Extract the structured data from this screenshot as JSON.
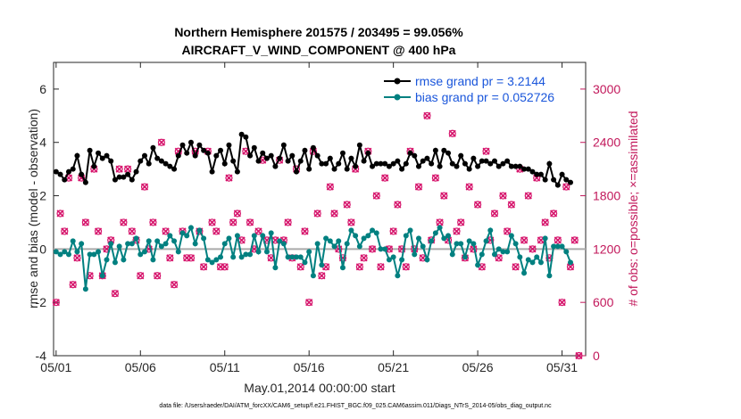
{
  "chart_data": {
    "type": "line",
    "title_line1": "Northern Hemisphere 201575 / 203495 = 99.056%",
    "title_line2": "AIRCRAFT_V_WIND_COMPONENT @ 400 hPa",
    "xlabel": "May.01,2014 00:00:00 start",
    "ylabel_left": "rmse and bias (model - observation)",
    "ylabel_right": "# of obs: o=possible; ×=assimilated",
    "x_range": [
      1,
      32
    ],
    "ylim_left": [
      -4,
      7
    ],
    "ylim_right": [
      0,
      3300
    ],
    "x_ticks": [
      {
        "value": 1,
        "label": "05/01"
      },
      {
        "value": 6,
        "label": "05/06"
      },
      {
        "value": 11,
        "label": "05/11"
      },
      {
        "value": 16,
        "label": "05/16"
      },
      {
        "value": 21,
        "label": "05/21"
      },
      {
        "value": 26,
        "label": "05/26"
      },
      {
        "value": 31,
        "label": "05/31"
      }
    ],
    "y_ticks_left": [
      {
        "value": -4,
        "label": "-4"
      },
      {
        "value": -2,
        "label": "-2"
      },
      {
        "value": 0,
        "label": "0"
      },
      {
        "value": 2,
        "label": "2"
      },
      {
        "value": 4,
        "label": "4"
      },
      {
        "value": 6,
        "label": "6"
      }
    ],
    "y_ticks_right": [
      {
        "value": 0,
        "label": "0"
      },
      {
        "value": 600,
        "label": "600"
      },
      {
        "value": 1200,
        "label": "1200"
      },
      {
        "value": 1800,
        "label": "1800"
      },
      {
        "value": 2400,
        "label": "2400"
      },
      {
        "value": 3000,
        "label": "3000"
      }
    ],
    "series": [
      {
        "name": "rmse",
        "legend_label": "rmse grand pr = 3.2144",
        "color": "#000000",
        "axis": "left",
        "x_start": 1,
        "x_step": 0.25,
        "values": [
          2.9,
          2.8,
          2.6,
          2.9,
          3.0,
          3.5,
          2.8,
          2.5,
          3.7,
          3.1,
          3.6,
          3.4,
          3.5,
          3.3,
          2.6,
          2.7,
          2.7,
          2.8,
          2.6,
          2.9,
          3.3,
          3.5,
          3.2,
          3.8,
          3.4,
          3.3,
          3.2,
          3.1,
          3.0,
          3.5,
          3.9,
          3.6,
          4.0,
          3.5,
          3.9,
          3.7,
          3.6,
          2.9,
          3.5,
          3.7,
          3.2,
          3.9,
          3.3,
          2.9,
          4.3,
          4.2,
          3.5,
          3.8,
          3.3,
          3.6,
          3.4,
          3.5,
          3.1,
          3.4,
          3.9,
          3.3,
          3.5,
          2.9,
          3.3,
          3.7,
          3.0,
          3.8,
          3.5,
          3.2,
          3.2,
          3.4,
          3.0,
          3.2,
          3.6,
          3.0,
          3.4,
          3.1,
          3.9,
          3.3,
          3.6,
          3.1,
          3.2,
          3.2,
          3.2,
          3.1,
          3.2,
          3.3,
          3.0,
          3.2,
          3.6,
          3.5,
          3.1,
          3.3,
          3.4,
          3.2,
          3.7,
          3.1,
          3.7,
          3.6,
          3.2,
          3.1,
          3.5,
          3.2,
          3.0,
          3.4,
          3.1,
          3.3,
          3.3,
          3.2,
          3.3,
          3.1,
          3.2,
          3.3,
          3.1,
          3.1,
          3.1,
          3.0,
          3.0,
          2.9,
          2.8,
          2.8,
          2.6,
          3.2,
          2.6,
          2.4,
          2.8,
          2.6,
          2.5
        ]
      },
      {
        "name": "bias",
        "legend_label": "bias grand pr = 0.052726",
        "color": "#008080",
        "axis": "left",
        "x_start": 1,
        "x_step": 0.25,
        "values": [
          -0.1,
          -0.2,
          -0.1,
          -0.2,
          0.3,
          -0.1,
          0.2,
          -1.5,
          -0.2,
          -0.2,
          -0.1,
          -1.0,
          -0.4,
          0.2,
          -0.5,
          0.1,
          -0.4,
          0.2,
          0.2,
          0.4,
          -0.2,
          -0.1,
          0.3,
          -0.4,
          0.3,
          0.1,
          0.2,
          0.5,
          0.3,
          -0.1,
          0.6,
          0.5,
          0.8,
          0.2,
          0.7,
          0.4,
          -0.4,
          -0.5,
          -0.4,
          -0.3,
          0.2,
          0.4,
          -0.3,
          0.5,
          -0.3,
          -0.2,
          -0.2,
          0.5,
          -0.1,
          0.5,
          -0.1,
          0.6,
          -0.7,
          0.3,
          0.2,
          -0.3,
          -0.3,
          -0.3,
          -0.3,
          -0.5,
          -0.1,
          -1.0,
          0.2,
          -0.6,
          0.4,
          0.3,
          0.1,
          0.3,
          -0.7,
          0.2,
          0.7,
          0.5,
          0.1,
          0.4,
          0.5,
          0.7,
          0.6,
          0.0,
          0.0,
          -0.4,
          -0.3,
          -1.0,
          -0.4,
          0.5,
          0.7,
          -0.2,
          0.4,
          0.1,
          -0.4,
          0.3,
          0.6,
          0.8,
          0.4,
          0.5,
          -0.2,
          0.2,
          0.2,
          -0.3,
          0.3,
          0.2,
          -0.6,
          -0.2,
          0.3,
          0.7,
          -0.2,
          0.0,
          -0.1,
          -0.1,
          0.5,
          0.2,
          -0.3,
          -0.9,
          -0.4,
          -0.5,
          -0.3,
          -0.5,
          0.4,
          -1.0,
          0.1,
          0.1,
          0.1,
          -0.1,
          -0.5
        ]
      }
    ],
    "obs_counts": {
      "name": "obs count",
      "color": "#d6156c",
      "axis": "right",
      "x_start": 1,
      "x_step": 0.25,
      "values": [
        600,
        1600,
        1400,
        2000,
        800,
        1100,
        2000,
        1500,
        900,
        2100,
        1400,
        900,
        1200,
        1300,
        700,
        2100,
        1500,
        2100,
        1400,
        1300,
        900,
        1900,
        1200,
        1500,
        900,
        2400,
        1400,
        1100,
        800,
        2300,
        1400,
        1100,
        1100,
        2300,
        1400,
        1000,
        2300,
        1500,
        1400,
        1000,
        1000,
        2000,
        1500,
        1600,
        1300,
        2300,
        1500,
        1200,
        1400,
        2200,
        1300,
        1100,
        1300,
        2200,
        1300,
        1500,
        1100,
        2100,
        1000,
        1400,
        600,
        2300,
        1600,
        900,
        1000,
        1900,
        1600,
        1200,
        1100,
        1700,
        1500,
        2100,
        1000,
        1100,
        2300,
        1200,
        1800,
        1000,
        2000,
        1200,
        1400,
        1700,
        1200,
        1000,
        2300,
        1200,
        1900,
        1100,
        2700,
        1300,
        2000,
        1500,
        1800,
        1300,
        2500,
        1400,
        1500,
        1100,
        1900,
        1200,
        1700,
        1000,
        2300,
        1300,
        1600,
        1100,
        1800,
        1400,
        1700,
        1000,
        2100,
        1300,
        1800,
        1200,
        2000,
        1300,
        1500,
        1100,
        1600,
        1300,
        600,
        1900,
        1000,
        1300,
        0
      ]
    }
  },
  "footer": "data file: /Users/raeder/DAI/ATM_forcXX/CAM6_setup/f.e21.FHIST_BGC.f09_025.CAM6assim.011/Diags_NTrS_2014-05/obs_diag_output.nc"
}
